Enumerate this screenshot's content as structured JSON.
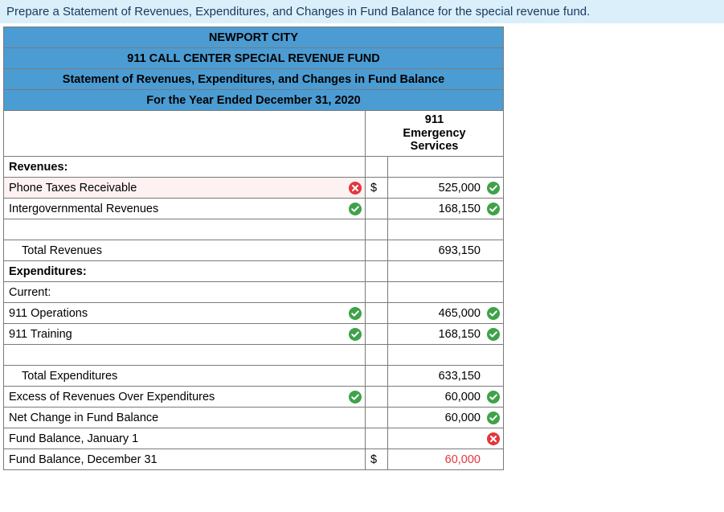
{
  "prompt": {
    "text": "Prepare a Statement of Revenues, Expenditures, and Changes in Fund Balance for the special revenue fund.",
    "bg": "#dbeffa",
    "color": "#17395f"
  },
  "header": {
    "bg": "#4b9cd3",
    "lines": [
      "NEWPORT CITY",
      "911 CALL CENTER SPECIAL REVENUE FUND",
      "Statement of Revenues, Expenditures, and Changes in Fund Balance",
      "For the Year Ended December 31, 2020"
    ]
  },
  "column_header": "911 Emergency Services",
  "sections": {
    "revenues_label": "Revenues:",
    "expenditures_label": "Expenditures:",
    "current_label": "Current:"
  },
  "rows": {
    "phone_taxes": {
      "label": "Phone Taxes Receivable",
      "label_status": "wrong",
      "sym": "$",
      "value": "525,000",
      "value_status": "correct"
    },
    "intergov": {
      "label": "Intergovernmental Revenues",
      "label_status": "correct",
      "sym": "",
      "value": "168,150",
      "value_status": "correct"
    },
    "total_rev": {
      "label": "Total Revenues",
      "label_status": "",
      "sym": "",
      "value": "693,150",
      "value_status": ""
    },
    "ops": {
      "label": "911 Operations",
      "label_status": "correct",
      "sym": "",
      "value": "465,000",
      "value_status": "correct"
    },
    "training": {
      "label": "911 Training",
      "label_status": "correct",
      "sym": "",
      "value": "168,150",
      "value_status": "correct"
    },
    "total_exp": {
      "label": "Total Expenditures",
      "label_status": "",
      "sym": "",
      "value": "633,150",
      "value_status": ""
    },
    "excess": {
      "label": "Excess of Revenues Over Expenditures",
      "label_status": "correct",
      "sym": "",
      "value": "60,000",
      "value_status": "correct"
    },
    "net_change": {
      "label": "Net Change in Fund Balance",
      "label_status": "",
      "sym": "",
      "value": "60,000",
      "value_status": "correct"
    },
    "fb_jan1": {
      "label": "Fund Balance, January 1",
      "label_status": "",
      "sym": "",
      "value": "",
      "value_status": "wrong"
    },
    "fb_dec31": {
      "label": "Fund Balance, December 31",
      "label_status": "",
      "sym": "$",
      "value": "60,000",
      "value_status": ""
    }
  },
  "colors": {
    "correct": "#3fa24a",
    "wrong": "#e2373c",
    "final_value": "#e2373c"
  }
}
